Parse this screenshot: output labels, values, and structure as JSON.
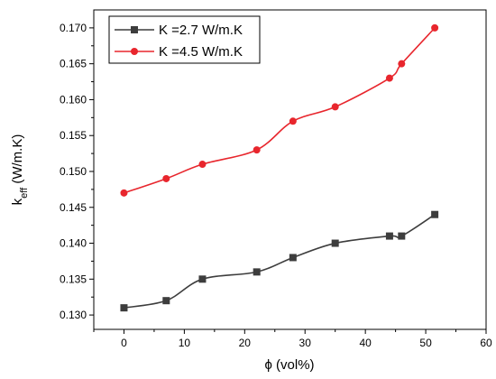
{
  "chart_data": {
    "type": "line",
    "title": "",
    "xlabel": "ϕ (vol%)",
    "ylabel_main": "k",
    "ylabel_sub": "eff",
    "ylabel_tail": " (W/m.K)",
    "xlim": [
      -5,
      60
    ],
    "ylim": [
      0.128,
      0.1725
    ],
    "xticks": [
      0,
      10,
      20,
      30,
      40,
      50,
      60
    ],
    "yticks": [
      0.13,
      0.135,
      0.14,
      0.145,
      0.15,
      0.155,
      0.16,
      0.165,
      0.17
    ],
    "grid": false,
    "legend_position": "top-left",
    "series": [
      {
        "name": "K =2.7 W/m.K",
        "color": "#3d3d3d",
        "marker": "square",
        "x": [
          0,
          7,
          13,
          22,
          28,
          35,
          44,
          46,
          51.5
        ],
        "y": [
          0.131,
          0.132,
          0.135,
          0.136,
          0.138,
          0.14,
          0.141,
          0.141,
          0.144
        ]
      },
      {
        "name": "K =4.5 W/m.K",
        "color": "#e8262d",
        "marker": "circle",
        "x": [
          0,
          7,
          13,
          22,
          28,
          35,
          44,
          46,
          51.5
        ],
        "y": [
          0.147,
          0.149,
          0.151,
          0.153,
          0.157,
          0.159,
          0.163,
          0.165,
          0.17
        ]
      }
    ]
  }
}
